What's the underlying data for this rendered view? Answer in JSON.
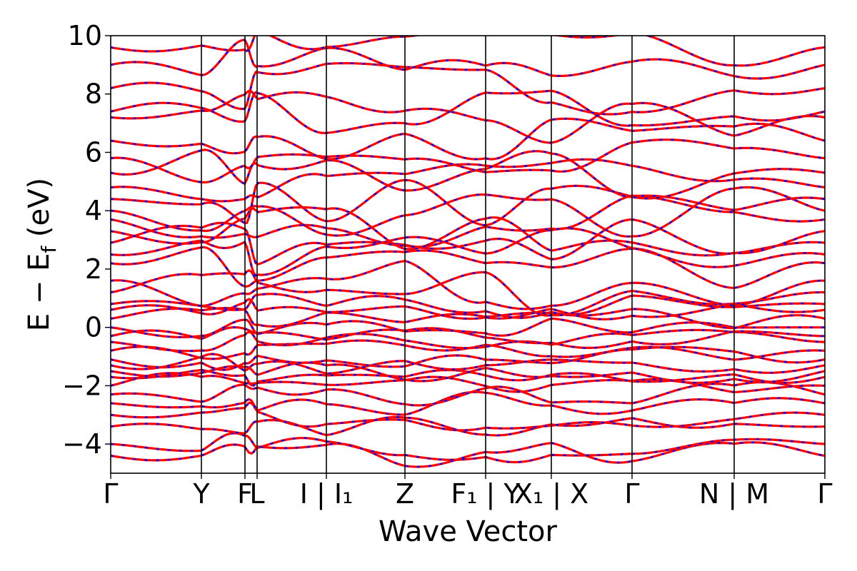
{
  "chart_data": {
    "type": "line",
    "title": "",
    "xlabel": "Wave Vector",
    "ylabel": "E − Ef",
    "ylabel_parts": {
      "main": "E − E",
      "sub": "f",
      "unit": "(eV)"
    },
    "ylim": [
      -5,
      10
    ],
    "xlim": [
      0,
      1
    ],
    "y_ticks": [
      {
        "value": -4,
        "label": "−4"
      },
      {
        "value": -2,
        "label": "−2"
      },
      {
        "value": 0,
        "label": "0"
      },
      {
        "value": 2,
        "label": "2"
      },
      {
        "value": 4,
        "label": "4"
      },
      {
        "value": 6,
        "label": "6"
      },
      {
        "value": 8,
        "label": "8"
      },
      {
        "value": 10,
        "label": "10"
      }
    ],
    "k_points": [
      {
        "k": 0.0,
        "label": "Γ",
        "line": false
      },
      {
        "k": 0.127,
        "label": "Y",
        "line": true
      },
      {
        "k": 0.188,
        "label": "F",
        "line": true
      },
      {
        "k": 0.205,
        "label": "L",
        "line": true
      },
      {
        "k": 0.302,
        "label": "I | I₁",
        "line": true
      },
      {
        "k": 0.412,
        "label": "Z",
        "line": true
      },
      {
        "k": 0.525,
        "label": "F₁ | Y",
        "line": true
      },
      {
        "k": 0.617,
        "label": "X₁ | X",
        "line": true
      },
      {
        "k": 0.73,
        "label": "Γ",
        "line": true
      },
      {
        "k": 0.873,
        "label": "N | M",
        "line": true
      },
      {
        "k": 1.0,
        "label": "Γ",
        "line": false
      }
    ],
    "series": [
      {
        "color": "#ff0000",
        "style": "solid"
      },
      {
        "color": "#0000ff",
        "style": "dashed"
      }
    ],
    "band_energies_at_gamma": [
      -4.4,
      -4.0,
      -3.4,
      -3.0,
      -2.6,
      -2.3,
      -2.0,
      -1.7,
      -1.5,
      -1.3,
      -1.1,
      -0.8,
      -0.5,
      -0.3,
      0.0,
      0.3,
      0.6,
      0.8,
      1.2,
      1.6,
      2.2,
      2.5,
      2.9,
      3.3,
      3.7,
      4.0,
      4.4,
      4.8,
      5.3,
      5.8,
      6.4,
      7.2,
      7.4,
      8.2,
      9.0,
      9.6
    ],
    "grid": false,
    "legend": "none"
  }
}
